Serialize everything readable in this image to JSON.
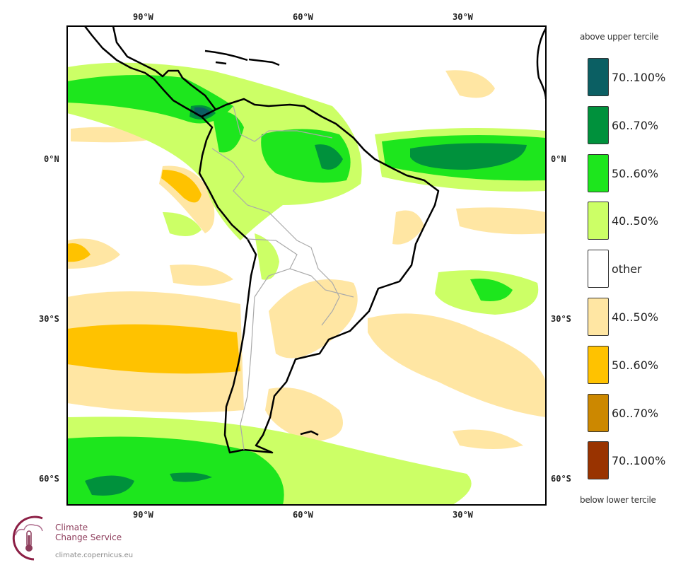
{
  "map": {
    "lon_ticks": [
      "90°W",
      "60°W",
      "30°W"
    ],
    "lat_ticks": [
      "0°N",
      "30°S",
      "60°S"
    ],
    "extent": {
      "lon": [
        -105,
        -15
      ],
      "lat": [
        25,
        -65
      ]
    }
  },
  "legend": {
    "top_label": "above upper tercile",
    "bottom_label": "below lower tercile",
    "items": [
      {
        "label": "70..100%",
        "color": "#0b5f63"
      },
      {
        "label": "60..70%",
        "color": "#00913c"
      },
      {
        "label": "50..60%",
        "color": "#1de61d"
      },
      {
        "label": "40..50%",
        "color": "#ccff66"
      },
      {
        "label": "other",
        "color": "#ffffff"
      },
      {
        "label": "40..50%",
        "color": "#ffe6a3"
      },
      {
        "label": "50..60%",
        "color": "#ffc200"
      },
      {
        "label": "60..70%",
        "color": "#cc8800"
      },
      {
        "label": "70..100%",
        "color": "#993300"
      }
    ]
  },
  "logo": {
    "name_line1": "Climate",
    "name_line2": "Change Service",
    "url": "climate.copernicus.eu"
  }
}
